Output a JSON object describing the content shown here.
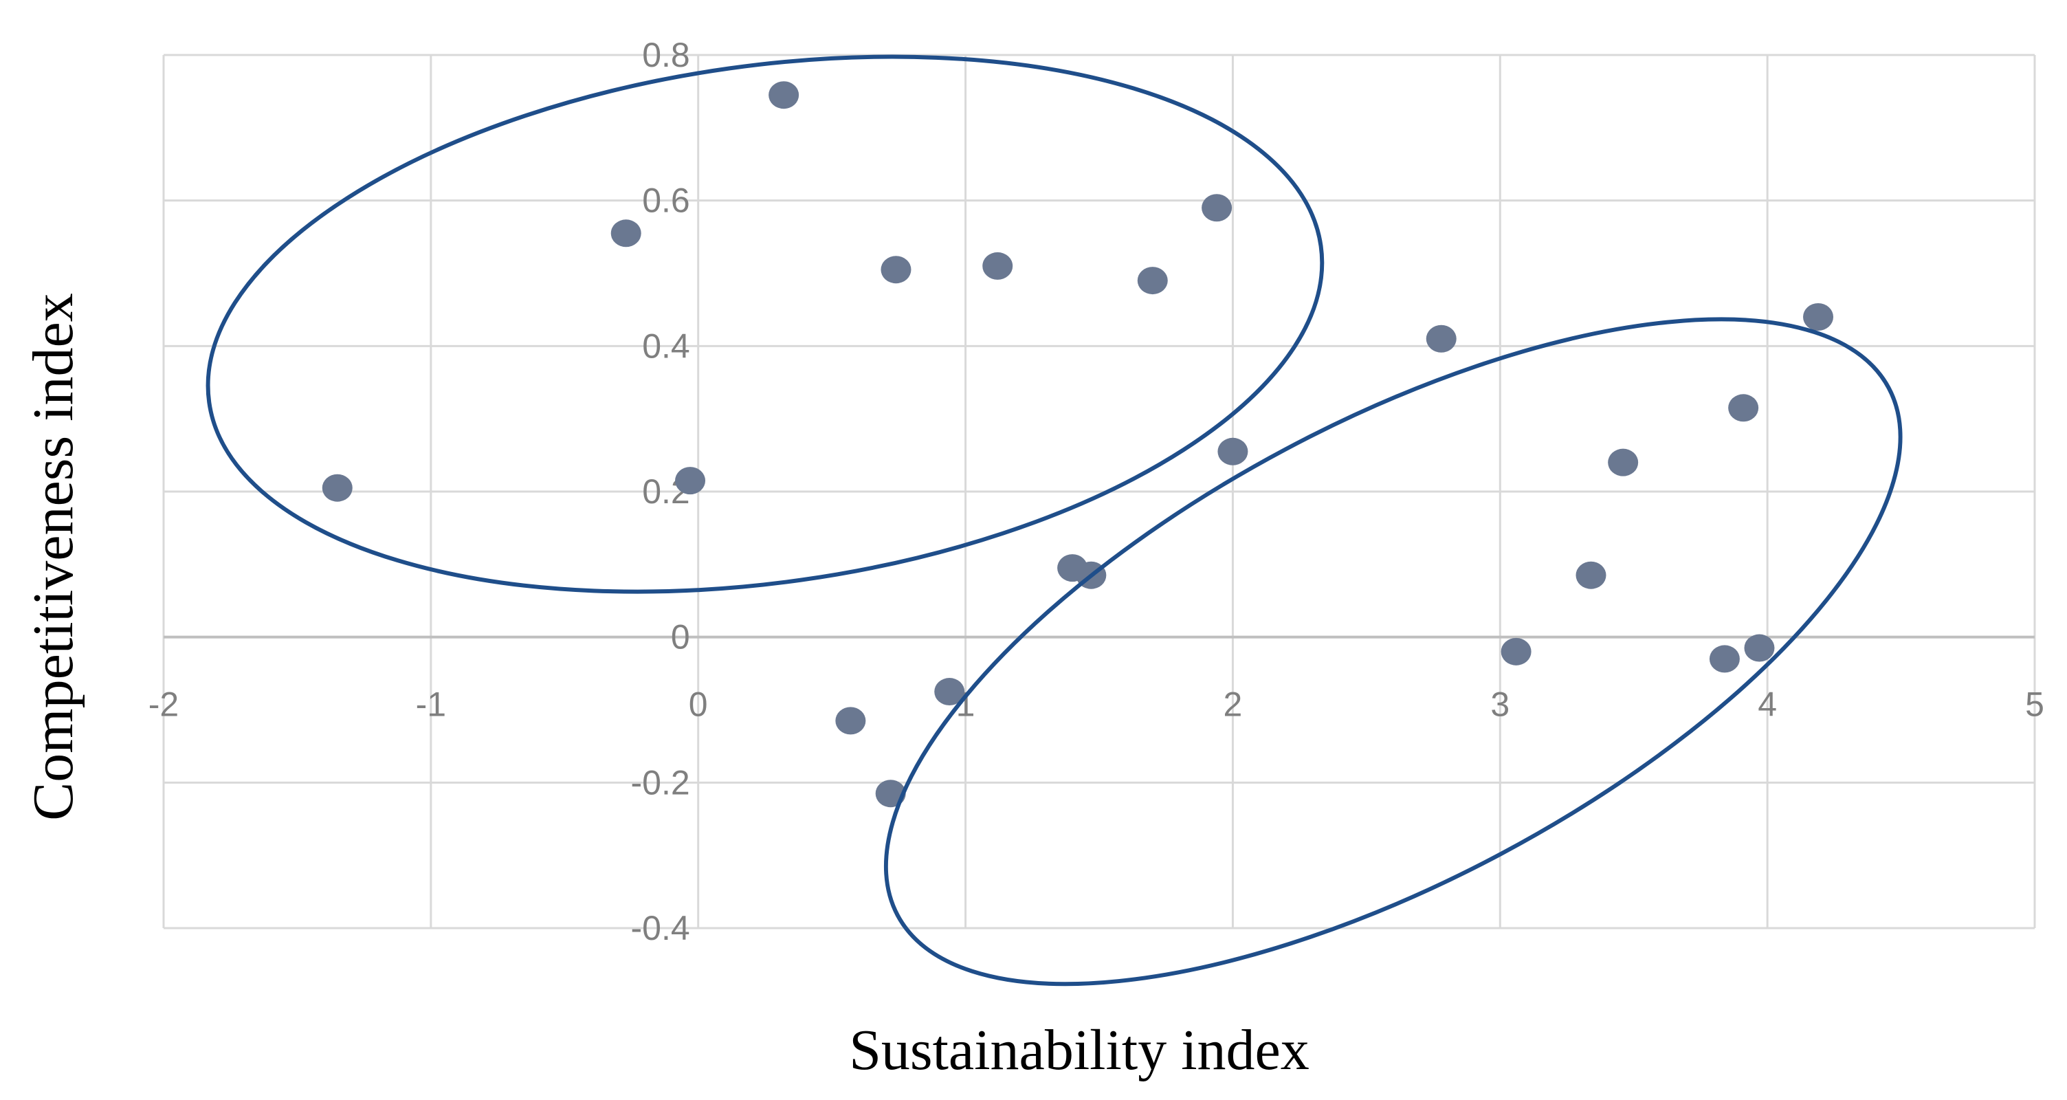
{
  "chart_data": {
    "type": "scatter",
    "xlabel": "Sustainability index",
    "ylabel": "Competitiveness index",
    "xlim": [
      -2,
      5
    ],
    "ylim": [
      -0.4,
      0.8
    ],
    "x_ticks": [
      -2,
      -1,
      0,
      1,
      2,
      3,
      4,
      5
    ],
    "y_ticks": [
      -0.4,
      -0.2,
      0,
      0.2,
      0.4,
      0.6,
      0.8
    ],
    "x_tick_labels": [
      "-2",
      "-1",
      "0",
      "1",
      "2",
      "3",
      "4",
      "5"
    ],
    "y_tick_labels": [
      "-0.4",
      "-0.2",
      "0",
      "0.2",
      "0.4",
      "0.6",
      "0.8"
    ],
    "grid": true,
    "legend": "none",
    "marker_color": "#6a7891",
    "ellipse_color": "#1f4e8a",
    "points": [
      {
        "x": -1.35,
        "y": 0.205
      },
      {
        "x": -0.27,
        "y": 0.555
      },
      {
        "x": -0.03,
        "y": 0.215
      },
      {
        "x": 0.32,
        "y": 0.745
      },
      {
        "x": 0.74,
        "y": 0.505
      },
      {
        "x": 1.12,
        "y": 0.51
      },
      {
        "x": 1.7,
        "y": 0.49
      },
      {
        "x": 1.94,
        "y": 0.59
      },
      {
        "x": 2.0,
        "y": 0.255
      },
      {
        "x": 2.78,
        "y": 0.41
      },
      {
        "x": 1.4,
        "y": 0.095
      },
      {
        "x": 1.47,
        "y": 0.085
      },
      {
        "x": 0.94,
        "y": -0.075
      },
      {
        "x": 0.57,
        "y": -0.115
      },
      {
        "x": 0.72,
        "y": -0.215
      },
      {
        "x": 3.06,
        "y": -0.02
      },
      {
        "x": 3.34,
        "y": 0.085
      },
      {
        "x": 3.46,
        "y": 0.24
      },
      {
        "x": 3.91,
        "y": 0.315
      },
      {
        "x": 3.84,
        "y": -0.03
      },
      {
        "x": 3.97,
        "y": -0.015
      },
      {
        "x": 4.19,
        "y": 0.44
      }
    ],
    "ellipses": [
      {
        "cx": 0.25,
        "cy": 0.43,
        "rx": 2.1,
        "ry": 0.355,
        "rotation_deg": -8
      },
      {
        "cx": 2.6,
        "cy": -0.02,
        "rx": 2.1,
        "ry": 0.315,
        "rotation_deg": -28
      }
    ]
  }
}
